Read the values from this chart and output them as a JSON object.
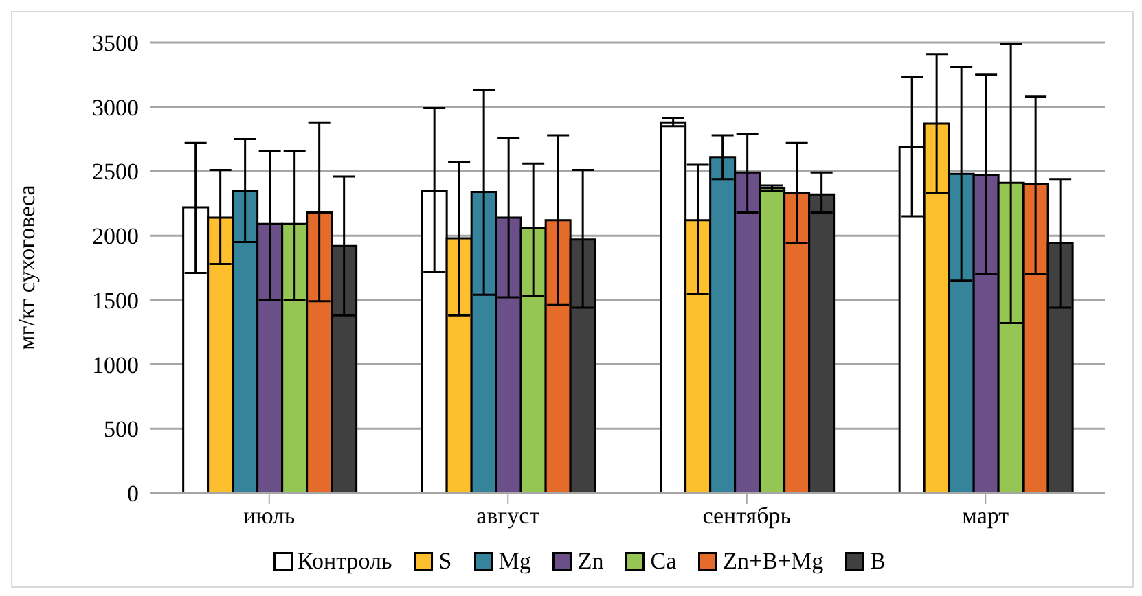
{
  "chart_data": {
    "type": "bar",
    "ylabel": "мг/кг сухоговеса",
    "categories": [
      "июль",
      "август",
      "сентябрь",
      "март"
    ],
    "series": [
      {
        "name": "Контроль",
        "color": "#ffffff",
        "values": [
          2220,
          2350,
          2880,
          2690
        ],
        "errors": [
          [
            1710,
            2720
          ],
          [
            1720,
            2990
          ],
          [
            2850,
            2910
          ],
          [
            2150,
            3230
          ]
        ]
      },
      {
        "name": "S",
        "color": "#fdbf2d",
        "values": [
          2140,
          1980,
          2120,
          2870
        ],
        "errors": [
          [
            1780,
            2510
          ],
          [
            1380,
            2570
          ],
          [
            1550,
            2550
          ],
          [
            2330,
            3410
          ]
        ]
      },
      {
        "name": "Mg",
        "color": "#35849c",
        "values": [
          2350,
          2340,
          2610,
          2480
        ],
        "errors": [
          [
            1950,
            2750
          ],
          [
            1540,
            3130
          ],
          [
            2440,
            2780
          ],
          [
            1650,
            3310
          ]
        ]
      },
      {
        "name": "Zn",
        "color": "#6a4f89",
        "values": [
          2090,
          2140,
          2490,
          2470
        ],
        "errors": [
          [
            1500,
            2660
          ],
          [
            1520,
            2760
          ],
          [
            2180,
            2790
          ],
          [
            1700,
            3250
          ]
        ]
      },
      {
        "name": "Ca",
        "color": "#95c653",
        "values": [
          2090,
          2060,
          2370,
          2410
        ],
        "errors": [
          [
            1500,
            2660
          ],
          [
            1530,
            2560
          ],
          [
            2350,
            2390
          ],
          [
            1320,
            3490
          ]
        ]
      },
      {
        "name": "Zn+B+Mg",
        "color": "#e46b2a",
        "values": [
          2180,
          2120,
          2330,
          2400
        ],
        "errors": [
          [
            1490,
            2880
          ],
          [
            1460,
            2780
          ],
          [
            1940,
            2720
          ],
          [
            1700,
            3080
          ]
        ]
      },
      {
        "name": "B",
        "color": "#404040",
        "values": [
          1920,
          1970,
          2320,
          1940
        ],
        "errors": [
          [
            1380,
            2460
          ],
          [
            1440,
            2510
          ],
          [
            2180,
            2490
          ],
          [
            1440,
            2440
          ]
        ]
      }
    ],
    "ylim": [
      0,
      3500
    ],
    "yticks": [
      0,
      500,
      1000,
      1500,
      2000,
      2500,
      3000,
      3500
    ],
    "grid": "y",
    "legend": "bottom"
  }
}
